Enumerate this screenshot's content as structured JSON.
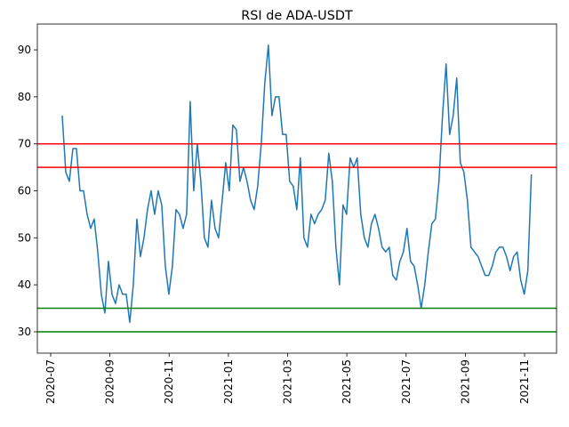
{
  "chart_data": {
    "type": "line",
    "title": "RSI de ADA-USDT",
    "x": [
      0.39,
      0.51,
      0.63,
      0.75,
      0.87,
      0.99,
      1.11,
      1.23,
      1.35,
      1.47,
      1.59,
      1.71,
      1.83,
      1.95,
      2.07,
      2.19,
      2.31,
      2.43,
      2.55,
      2.67,
      2.79,
      2.91,
      3.03,
      3.15,
      3.27,
      3.39,
      3.51,
      3.63,
      3.75,
      3.87,
      3.99,
      4.11,
      4.23,
      4.35,
      4.47,
      4.59,
      4.71,
      4.83,
      4.95,
      5.07,
      5.19,
      5.31,
      5.43,
      5.55,
      5.67,
      5.79,
      5.91,
      6.03,
      6.15,
      6.27,
      6.39,
      6.51,
      6.63,
      6.75,
      6.87,
      6.99,
      7.11,
      7.23,
      7.35,
      7.47,
      7.59,
      7.71,
      7.83,
      7.95,
      8.07,
      8.19,
      8.31,
      8.43,
      8.55,
      8.67,
      8.79,
      8.91,
      9.03,
      9.15,
      9.27,
      9.39,
      9.51,
      9.63,
      9.75,
      9.87,
      9.99,
      10.11,
      10.23,
      10.35,
      10.47,
      10.59,
      10.71,
      10.83,
      10.95,
      11.07,
      11.19,
      11.31,
      11.43,
      11.55,
      11.67,
      11.79,
      11.91,
      12.03,
      12.15,
      12.27,
      12.39,
      12.51,
      12.63,
      12.75,
      12.87,
      12.99,
      13.11,
      13.23,
      13.35,
      13.47,
      13.59,
      13.71,
      13.83,
      13.95,
      14.07,
      14.19,
      14.31,
      14.43,
      14.55,
      14.67,
      14.79,
      14.91,
      15.03,
      15.15,
      15.27,
      15.39,
      15.51,
      15.63,
      15.75,
      15.87,
      15.99,
      16.11,
      16.23
    ],
    "series": [
      {
        "color": "#1f77b4",
        "values": [
          76,
          64,
          62,
          69,
          69,
          60,
          60,
          55,
          52,
          54,
          47,
          38,
          34,
          45,
          38,
          36,
          40,
          38,
          38,
          32,
          40,
          54,
          46,
          50,
          56,
          60,
          55,
          60,
          57,
          44,
          38,
          44,
          56,
          55,
          52,
          55,
          79,
          60,
          70,
          62,
          50,
          48,
          58,
          52,
          50,
          58,
          66,
          60,
          74,
          73,
          62,
          65,
          62,
          58,
          56,
          61,
          70,
          83,
          91,
          76,
          80,
          80,
          72,
          72,
          62,
          61,
          56,
          67,
          50,
          48,
          55,
          53,
          55,
          56,
          58,
          68,
          62,
          48,
          40,
          57,
          55,
          67,
          65,
          67,
          55,
          50,
          48,
          53,
          55,
          52,
          48,
          47,
          48,
          42,
          41,
          45,
          47,
          52,
          45,
          44,
          40,
          35,
          40,
          47,
          53,
          54,
          62,
          76,
          87,
          72,
          76,
          84,
          66,
          64,
          58,
          48,
          47,
          46,
          44,
          42,
          42,
          44,
          47,
          48,
          48,
          46,
          43,
          46,
          47,
          41,
          38,
          43,
          63.5
        ]
      }
    ],
    "hlines": [
      {
        "value": 70,
        "color": "#ff0000"
      },
      {
        "value": 65,
        "color": "#ff0000"
      },
      {
        "value": 35,
        "color": "#008000"
      },
      {
        "value": 30,
        "color": "#008000"
      }
    ],
    "xlim": [
      -0.45,
      17.08
    ],
    "ylim": [
      25.45,
      95.5
    ],
    "xticks": [
      {
        "value": 0,
        "label": "2020-07"
      },
      {
        "value": 2,
        "label": "2020-09"
      },
      {
        "value": 4,
        "label": "2020-11"
      },
      {
        "value": 6,
        "label": "2021-01"
      },
      {
        "value": 8,
        "label": "2021-03"
      },
      {
        "value": 10,
        "label": "2021-05"
      },
      {
        "value": 12,
        "label": "2021-07"
      },
      {
        "value": 14,
        "label": "2021-09"
      },
      {
        "value": 16,
        "label": "2021-11"
      }
    ],
    "yticks": [
      30,
      40,
      50,
      60,
      70,
      80,
      90
    ]
  }
}
